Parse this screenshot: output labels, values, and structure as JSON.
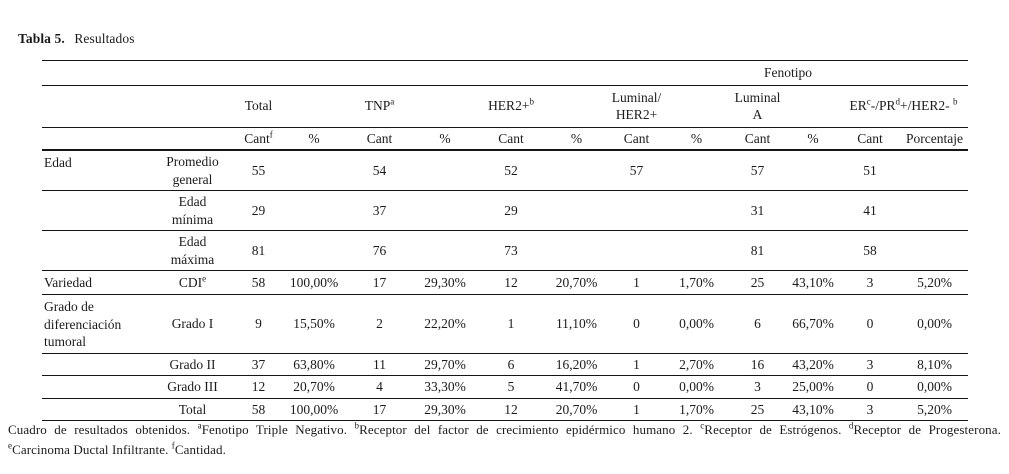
{
  "title": {
    "bold": "Tabla 5.",
    "rest": "Resultados"
  },
  "header": {
    "fenotipo": "Fenotipo",
    "groups": {
      "total": "Total",
      "tnp": "TNP",
      "tnp_sup": "a",
      "her2": "HER2+",
      "her2_sup": "b",
      "luminal_her2": "Luminal/\nHER2+",
      "luminal_a": "Luminal A",
      "er_p1": "ER",
      "er_s1": "c",
      "er_p2": "-/PR",
      "er_s2": "d",
      "er_p3": "+/HER2- ",
      "er_s3": "b"
    },
    "sub": {
      "cant": "Cant",
      "cant_sup": "f",
      "pct": "%",
      "porcentaje": "Porcentaje"
    }
  },
  "body": {
    "rows": [
      [
        "Edad",
        "Promedio\ngeneral",
        "55",
        "",
        "54",
        "",
        "52",
        "",
        "57",
        "",
        "57",
        "",
        "51",
        ""
      ],
      [
        "",
        "Edad\nmínima",
        "29",
        "",
        "37",
        "",
        "29",
        "",
        "",
        "",
        "31",
        "",
        "41",
        ""
      ],
      [
        "",
        "Edad\nmáxima",
        "81",
        "",
        "76",
        "",
        "73",
        "",
        "",
        "",
        "81",
        "",
        "58",
        ""
      ],
      [
        "Variedad",
        {
          "t": "CDI",
          "sup": "e"
        },
        "58",
        "100,00%",
        "17",
        "29,30%",
        "12",
        "20,70%",
        "1",
        "1,70%",
        "25",
        "43,10%",
        "3",
        "5,20%"
      ],
      [
        "Grado de\ndiferenciación\ntumoral",
        "Grado I",
        "9",
        "15,50%",
        "2",
        "22,20%",
        "1",
        "11,10%",
        "0",
        "0,00%",
        "6",
        "66,70%",
        "0",
        "0,00%"
      ],
      [
        "",
        "Grado II",
        "37",
        "63,80%",
        "11",
        "29,70%",
        "6",
        "16,20%",
        "1",
        "2,70%",
        "16",
        "43,20%",
        "3",
        "8,10%"
      ],
      [
        "",
        "Grado III",
        "12",
        "20,70%",
        "4",
        "33,30%",
        "5",
        "41,70%",
        "0",
        "0,00%",
        "3",
        "25,00%",
        "0",
        "0,00%"
      ],
      [
        "",
        "Total",
        "58",
        "100,00%",
        "17",
        "29,30%",
        "12",
        "20,70%",
        "1",
        "1,70%",
        "25",
        "43,10%",
        "3",
        "5,20%"
      ]
    ]
  },
  "footnote": {
    "intro": "Cuadro de resultados obtenidos. ",
    "a_sup": "a",
    "a_text": "Fenotipo Triple Negativo. ",
    "b_sup": "b",
    "b_text": "Receptor del factor de crecimiento epidérmico humano 2. ",
    "c_sup": "c",
    "c_text": "Receptor de Estrógenos. ",
    "d_sup": "d",
    "d_text": "Receptor de Progesterona.",
    "e_sup": "e",
    "e_text": "Carcinoma Ductal Infiltrante. ",
    "f_sup": "f",
    "f_text": "Cantidad."
  },
  "colors": {
    "text": "#1b1b1b",
    "rule": "#151515",
    "background": "#ffffff"
  }
}
